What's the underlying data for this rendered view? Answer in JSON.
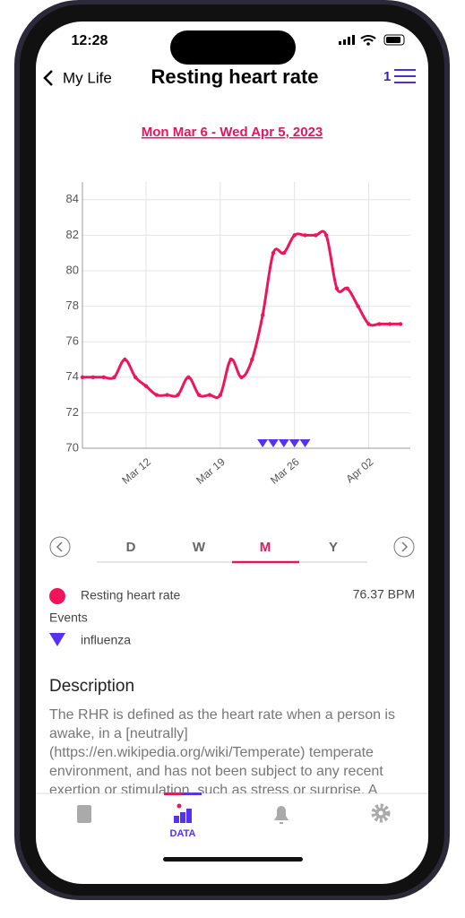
{
  "status": {
    "time": "12:28"
  },
  "header": {
    "back": "My Life",
    "title": "Resting heart rate",
    "badge": "1"
  },
  "date_range": "Mon Mar 6 - Wed Apr 5, 2023",
  "chart_data": {
    "type": "line",
    "categories": [
      null,
      null,
      null,
      null,
      null,
      null,
      "Mar 12",
      null,
      null,
      null,
      null,
      null,
      null,
      "Mar 19",
      null,
      null,
      null,
      null,
      null,
      null,
      "Mar 26",
      null,
      null,
      null,
      null,
      null,
      null,
      "Apr 02",
      null,
      null,
      null
    ],
    "series": [
      {
        "name": "Resting heart rate",
        "color": "#f0145a",
        "values": [
          74,
          74,
          74,
          74,
          75,
          74,
          73.5,
          73,
          73,
          73,
          74,
          73,
          73,
          73,
          75,
          74,
          75,
          77.5,
          81,
          81,
          82,
          82,
          82,
          82,
          79,
          79,
          78,
          77,
          77,
          77,
          77
        ]
      },
      {
        "name": "influenza",
        "color": "#5533ee",
        "marker": "triangle",
        "values": [
          null,
          null,
          null,
          null,
          null,
          null,
          null,
          null,
          null,
          null,
          null,
          null,
          null,
          null,
          null,
          null,
          null,
          70,
          70,
          70,
          70,
          70,
          null,
          null,
          null,
          null,
          null,
          null,
          null,
          null,
          null
        ]
      }
    ],
    "ylim": [
      70,
      85
    ],
    "yticks": [
      70,
      72,
      74,
      76,
      78,
      80,
      82,
      84
    ],
    "grid": true,
    "legend": {
      "current_value": "76.37 BPM",
      "events_label": "Events"
    }
  },
  "periods": [
    "D",
    "W",
    "M",
    "Y"
  ],
  "active_period": 2,
  "description": {
    "title": "Description",
    "text": "The RHR is defined as the heart rate when a person is awake, in a [neutrally](https://en.wikipedia.org/wiki/Temperate) temperate environment, and has not been subject to any recent exertion or stimulation, such as stress or surprise. A normal resting heart rate for"
  },
  "tabbar": {
    "active_label": "DATA"
  }
}
